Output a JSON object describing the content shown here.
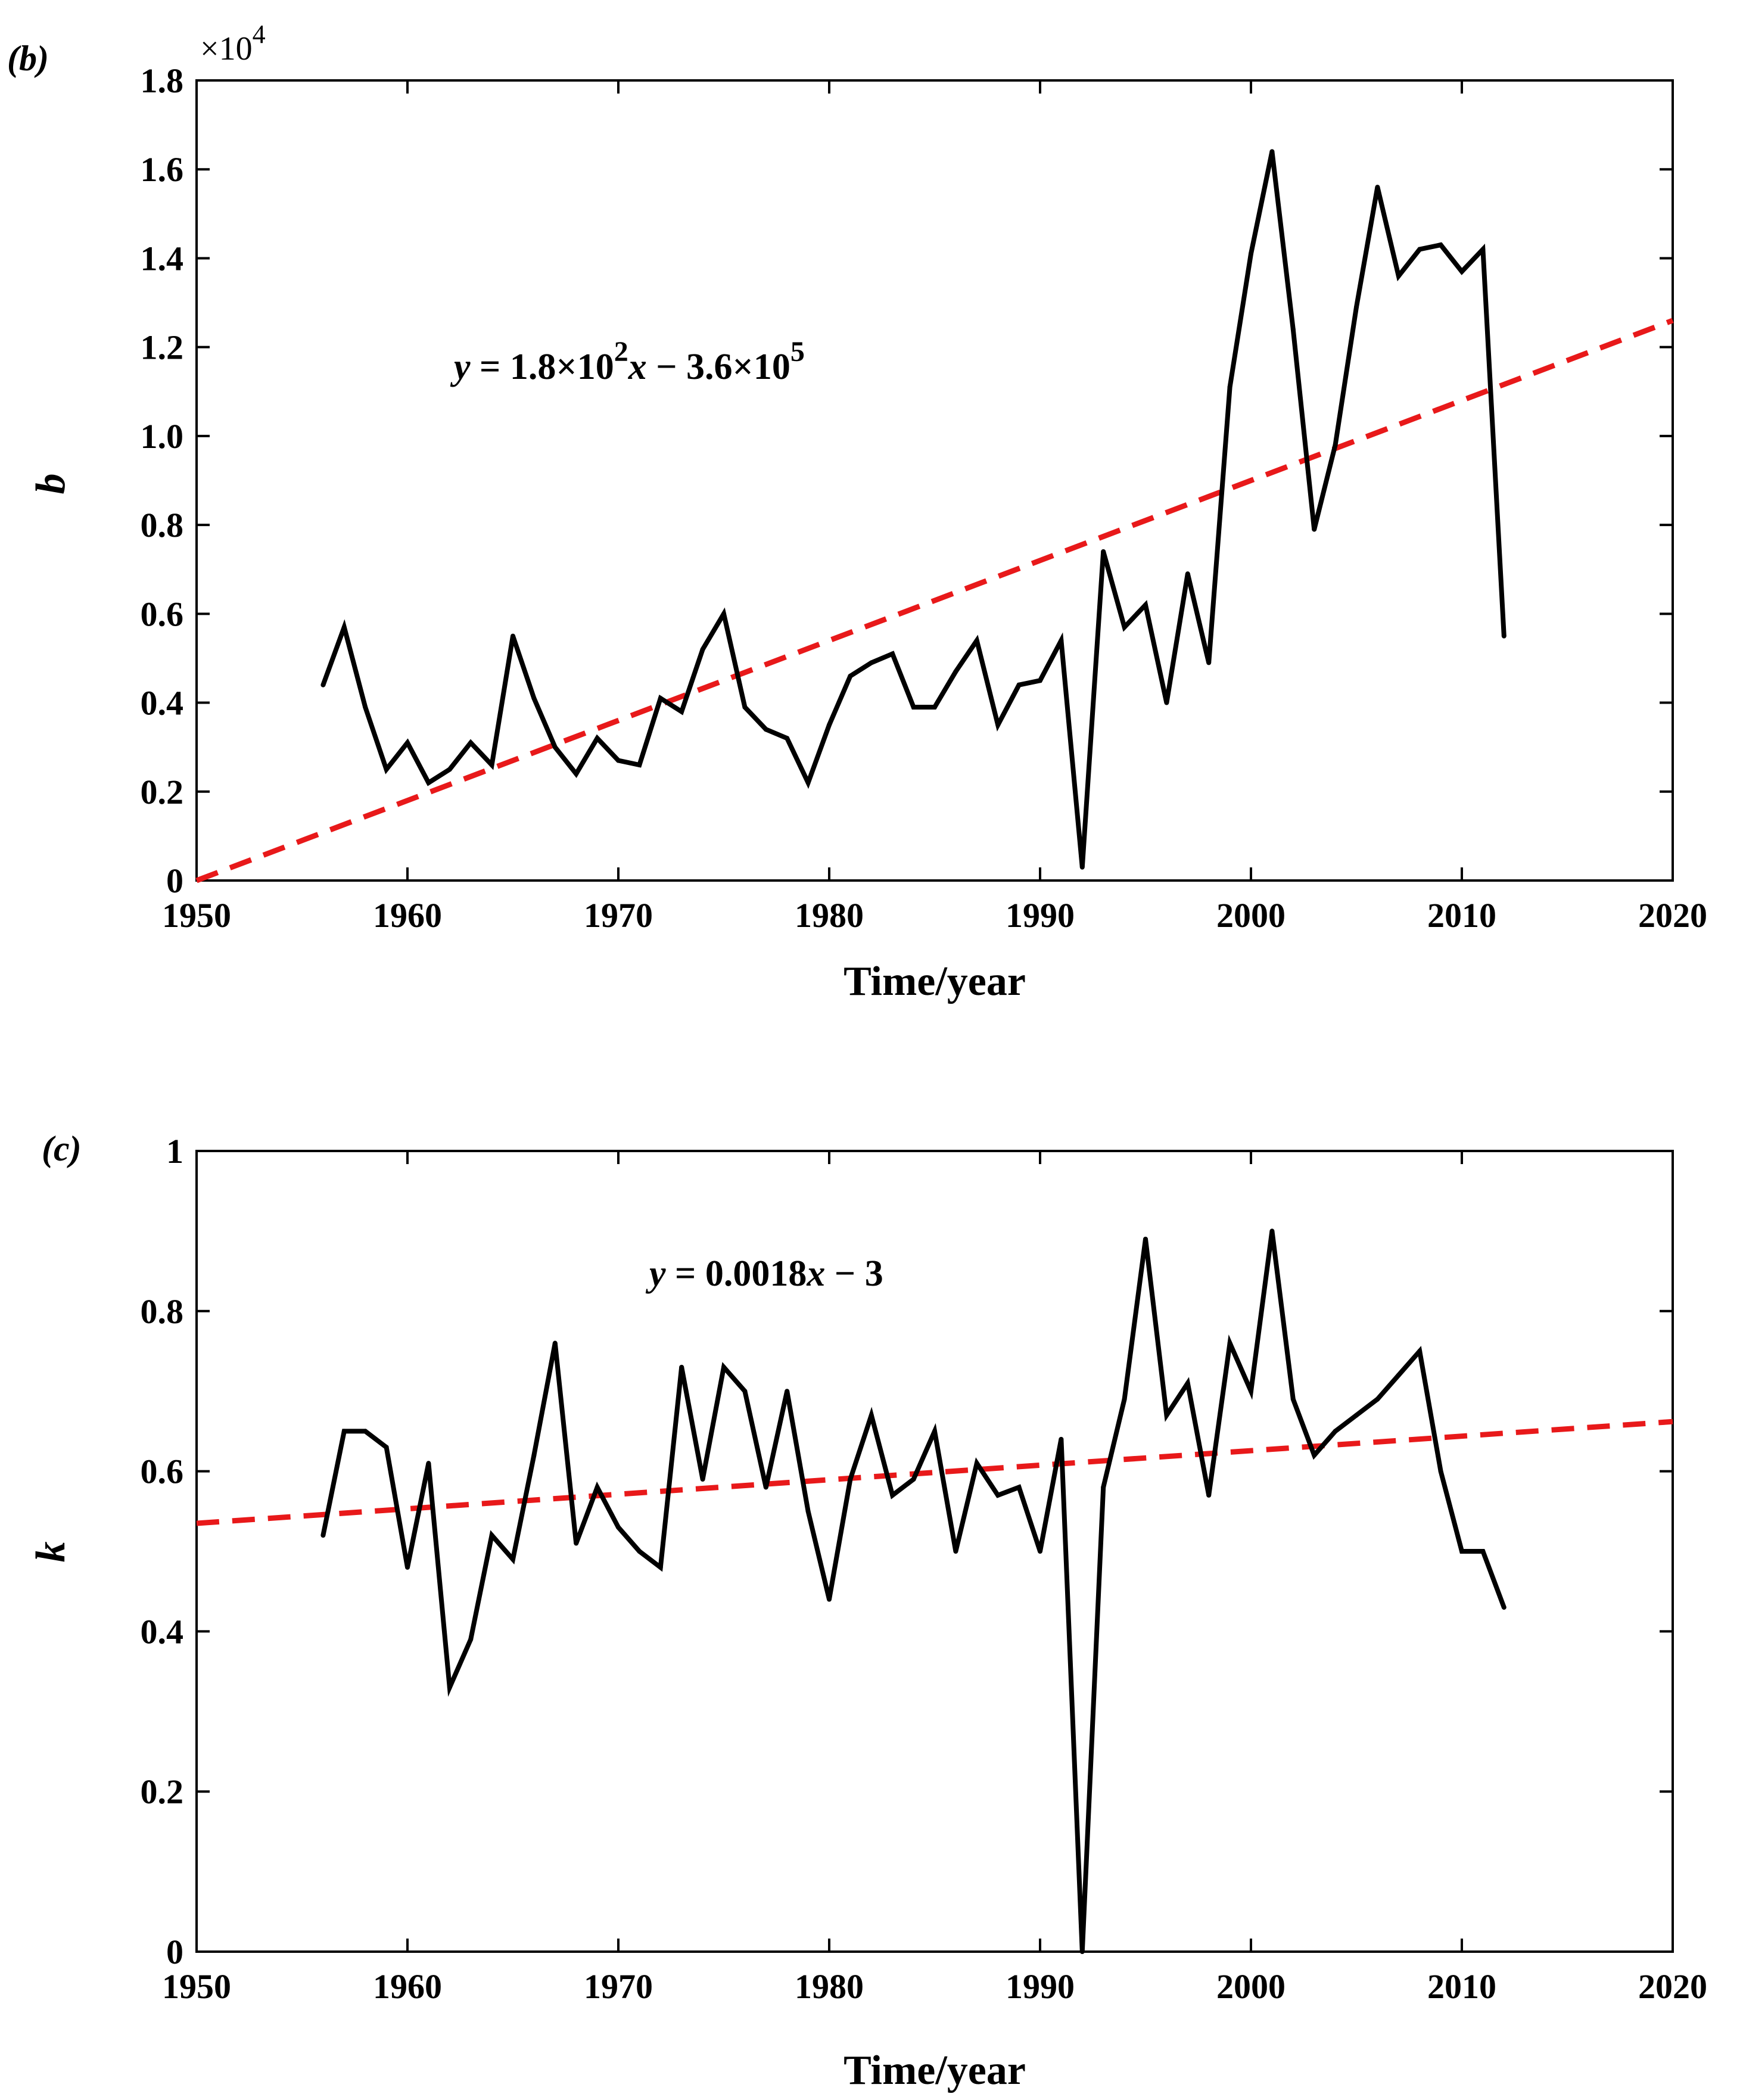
{
  "chart_data": [
    {
      "type": "line",
      "panel_label": "(b)",
      "ylabel": "b",
      "xlabel": "Time/year",
      "multiplier_base": "×10",
      "multiplier_exp": "4",
      "equation": {
        "y": "y",
        "part1": " = 1.8×10",
        "sup1": "2",
        "x": "x",
        "part2": " − 3.6×10",
        "sup2": "5"
      },
      "xlim": [
        1950,
        2020
      ],
      "ylim": [
        0,
        1.8
      ],
      "xticks": [
        1950,
        1960,
        1970,
        1980,
        1990,
        2000,
        2010,
        2020
      ],
      "xtick_labels": [
        "1950",
        "1960",
        "1970",
        "1980",
        "1990",
        "2000",
        "2010",
        "2020"
      ],
      "yticks": [
        0,
        0.2,
        0.4,
        0.6,
        0.8,
        1.0,
        1.2,
        1.4,
        1.6,
        1.8
      ],
      "ytick_labels": [
        "0",
        "0.2",
        "0.4",
        "0.6",
        "0.8",
        "1.0",
        "1.2",
        "1.4",
        "1.6",
        "1.8"
      ],
      "series": [
        {
          "name": "b",
          "color": "#000000",
          "x": [
            1956,
            1957,
            1958,
            1959,
            1960,
            1961,
            1962,
            1963,
            1964,
            1965,
            1966,
            1967,
            1968,
            1969,
            1970,
            1971,
            1972,
            1973,
            1974,
            1975,
            1976,
            1977,
            1978,
            1979,
            1980,
            1981,
            1982,
            1983,
            1984,
            1985,
            1986,
            1987,
            1988,
            1989,
            1990,
            1991,
            1992,
            1993,
            1994,
            1995,
            1996,
            1997,
            1998,
            1999,
            2000,
            2001,
            2002,
            2003,
            2004,
            2005,
            2006,
            2007,
            2008,
            2009,
            2010,
            2011,
            2012
          ],
          "y": [
            0.44,
            0.57,
            0.39,
            0.25,
            0.31,
            0.22,
            0.25,
            0.31,
            0.26,
            0.55,
            0.41,
            0.3,
            0.24,
            0.32,
            0.27,
            0.26,
            0.41,
            0.38,
            0.52,
            0.6,
            0.39,
            0.34,
            0.32,
            0.22,
            0.35,
            0.46,
            0.49,
            0.51,
            0.39,
            0.39,
            0.47,
            0.54,
            0.35,
            0.44,
            0.45,
            0.54,
            0.03,
            0.74,
            0.57,
            0.62,
            0.4,
            0.69,
            0.49,
            1.11,
            1.41,
            1.64,
            1.24,
            0.79,
            0.98,
            1.29,
            1.56,
            1.36,
            1.42,
            1.43,
            1.37,
            1.42,
            0.55
          ]
        },
        {
          "name": "linear fit",
          "color": "#e8191a",
          "dashed": true,
          "x": [
            1950,
            2020
          ],
          "y": [
            0,
            1.26
          ]
        }
      ]
    },
    {
      "type": "line",
      "panel_label": "(c)",
      "ylabel": "k",
      "xlabel": "Time/year",
      "equation": {
        "y": "y",
        "part1": " = 0.0018",
        "x": "x",
        "part2": " − 3"
      },
      "xlim": [
        1950,
        2020
      ],
      "ylim": [
        0,
        1
      ],
      "xticks": [
        1950,
        1960,
        1970,
        1980,
        1990,
        2000,
        2010,
        2020
      ],
      "xtick_labels": [
        "1950",
        "1960",
        "1970",
        "1980",
        "1990",
        "2000",
        "2010",
        "2020"
      ],
      "yticks": [
        0,
        0.2,
        0.4,
        0.6,
        0.8,
        1
      ],
      "ytick_labels": [
        "0",
        "0.2",
        "0.4",
        "0.6",
        "0.8",
        "1"
      ],
      "series": [
        {
          "name": "k",
          "color": "#000000",
          "x": [
            1956,
            1957,
            1958,
            1959,
            1960,
            1961,
            1962,
            1963,
            1964,
            1965,
            1966,
            1967,
            1968,
            1969,
            1970,
            1971,
            1972,
            1973,
            1974,
            1975,
            1976,
            1977,
            1978,
            1979,
            1980,
            1981,
            1982,
            1983,
            1984,
            1985,
            1986,
            1987,
            1988,
            1989,
            1990,
            1991,
            1992,
            1993,
            1994,
            1995,
            1996,
            1997,
            1998,
            1999,
            2000,
            2001,
            2002,
            2003,
            2004,
            2005,
            2006,
            2007,
            2008,
            2009,
            2010,
            2011,
            2012
          ],
          "y": [
            0.52,
            0.65,
            0.65,
            0.63,
            0.48,
            0.61,
            0.33,
            0.39,
            0.52,
            0.49,
            0.62,
            0.76,
            0.51,
            0.58,
            0.53,
            0.5,
            0.48,
            0.73,
            0.59,
            0.73,
            0.7,
            0.58,
            0.7,
            0.55,
            0.44,
            0.59,
            0.67,
            0.57,
            0.59,
            0.65,
            0.5,
            0.61,
            0.57,
            0.58,
            0.5,
            0.64,
            0.0,
            0.58,
            0.69,
            0.89,
            0.67,
            0.71,
            0.57,
            0.76,
            0.7,
            0.9,
            0.69,
            0.62,
            0.65,
            0.67,
            0.69,
            0.72,
            0.75,
            0.6,
            0.5,
            0.5,
            0.43
          ]
        },
        {
          "name": "linear fit",
          "color": "#e8191a",
          "dashed": true,
          "x": [
            1950,
            2020
          ],
          "y": [
            0.535,
            0.662
          ]
        }
      ]
    }
  ]
}
